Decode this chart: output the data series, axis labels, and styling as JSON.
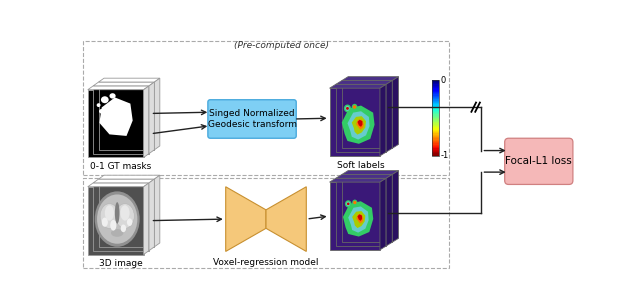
{
  "fig_width": 6.4,
  "fig_height": 3.05,
  "dpi": 100,
  "label_gt_masks": "0-1 GT masks",
  "label_3d_image": "3D image",
  "label_soft_labels": "Soft labels",
  "label_sng": "Singed Normalized\nGeodesic transform",
  "label_voxel": "Voxel-regression model",
  "label_focal": "Focal-L1 loss",
  "label_precomputed": "(Pre-computed once)",
  "sng_box_color": "#7ecff4",
  "sng_edge_color": "#4aaadd",
  "focal_box_color": "#f5b8b8",
  "focal_box_edge": "#d08080",
  "arrow_color": "#222222",
  "stack_face_color": "#000000",
  "stack_edge_color": "#999999",
  "sl_face_color": "#3a1878",
  "sl_top_color": "#4a3088",
  "sl_right_color": "#2a1060",
  "brain_outer": "#b0b0b0",
  "brain_mid": "#d8d8d8",
  "brain_dark": "#404040"
}
